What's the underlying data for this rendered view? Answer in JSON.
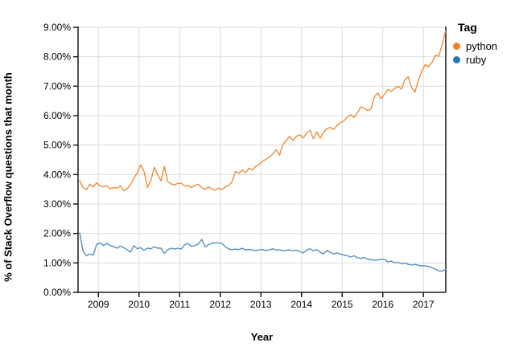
{
  "figure": {
    "y_axis_title": "% of Stack Overflow questions that month",
    "x_axis_title": "Year"
  },
  "legend": {
    "title": "Tag",
    "items": [
      {
        "label": "python",
        "color": "#f28022"
      },
      {
        "label": "ruby",
        "color": "#2878b8"
      }
    ]
  },
  "colors": {
    "background": "#ffffff",
    "grid": "#dcdcdc",
    "axis": "#1a1a1a",
    "text": "#000000",
    "python_line": "#f28c39",
    "ruby_line": "#5590c8"
  },
  "chart_data": {
    "type": "line",
    "title": "",
    "xlabel": "Year",
    "ylabel": "% of Stack Overflow questions that month",
    "grid": true,
    "legend_position": "top-right",
    "legend_title": "Tag",
    "x_unit": "month",
    "x_start": "2008-07",
    "x_end": "2017-07",
    "start_year": 2008,
    "start_month": 7,
    "xlim": [
      2008.5,
      2017.55
    ],
    "ylim": [
      0,
      9
    ],
    "x_ticks": [
      2009,
      2010,
      2011,
      2012,
      2013,
      2014,
      2015,
      2016,
      2017
    ],
    "x_tick_labels": [
      "2009",
      "2010",
      "2011",
      "2012",
      "2013",
      "2014",
      "2015",
      "2016",
      "2017"
    ],
    "y_ticks": [
      0,
      1,
      2,
      3,
      4,
      5,
      6,
      7,
      8,
      9
    ],
    "y_tick_labels": [
      "0.00%",
      "1.00%",
      "2.00%",
      "3.00%",
      "4.00%",
      "5.00%",
      "6.00%",
      "7.00%",
      "8.00%",
      "9.00%"
    ],
    "series": [
      {
        "name": "python",
        "color": "#f28c39",
        "values": [
          3.79,
          3.56,
          3.49,
          3.67,
          3.58,
          3.72,
          3.62,
          3.58,
          3.62,
          3.52,
          3.56,
          3.54,
          3.62,
          3.45,
          3.52,
          3.65,
          3.88,
          4.06,
          4.33,
          4.1,
          3.56,
          3.8,
          4.25,
          4.0,
          3.79,
          4.28,
          3.76,
          3.68,
          3.65,
          3.7,
          3.7,
          3.61,
          3.63,
          3.56,
          3.63,
          3.67,
          3.56,
          3.49,
          3.58,
          3.51,
          3.47,
          3.54,
          3.49,
          3.58,
          3.63,
          3.76,
          4.11,
          4.04,
          4.16,
          4.06,
          4.22,
          4.16,
          4.28,
          4.35,
          4.45,
          4.52,
          4.6,
          4.7,
          4.84,
          4.66,
          5.02,
          5.16,
          5.3,
          5.16,
          5.3,
          5.35,
          5.24,
          5.4,
          5.5,
          5.21,
          5.45,
          5.23,
          5.44,
          5.56,
          5.6,
          5.53,
          5.67,
          5.76,
          5.82,
          5.95,
          6.03,
          5.94,
          6.1,
          6.3,
          6.26,
          6.17,
          6.22,
          6.63,
          6.77,
          6.58,
          6.72,
          6.89,
          6.83,
          6.92,
          7.0,
          6.9,
          7.22,
          7.32,
          6.95,
          6.8,
          7.2,
          7.5,
          7.73,
          7.66,
          7.8,
          8.05,
          8.02,
          8.4,
          8.87
        ]
      },
      {
        "name": "ruby",
        "color": "#5590c8",
        "values": [
          2.02,
          1.39,
          1.24,
          1.3,
          1.27,
          1.63,
          1.68,
          1.59,
          1.66,
          1.59,
          1.55,
          1.5,
          1.57,
          1.52,
          1.45,
          1.36,
          1.59,
          1.48,
          1.52,
          1.43,
          1.5,
          1.48,
          1.55,
          1.5,
          1.5,
          1.32,
          1.45,
          1.5,
          1.47,
          1.5,
          1.47,
          1.62,
          1.66,
          1.56,
          1.59,
          1.64,
          1.8,
          1.55,
          1.62,
          1.66,
          1.68,
          1.68,
          1.66,
          1.55,
          1.47,
          1.45,
          1.47,
          1.45,
          1.5,
          1.44,
          1.46,
          1.44,
          1.42,
          1.44,
          1.45,
          1.42,
          1.44,
          1.48,
          1.43,
          1.45,
          1.41,
          1.43,
          1.44,
          1.41,
          1.44,
          1.38,
          1.34,
          1.43,
          1.48,
          1.41,
          1.45,
          1.36,
          1.3,
          1.43,
          1.36,
          1.3,
          1.34,
          1.3,
          1.27,
          1.24,
          1.2,
          1.24,
          1.18,
          1.15,
          1.18,
          1.13,
          1.11,
          1.09,
          1.1,
          1.12,
          1.12,
          1.04,
          1.06,
          1.0,
          1.02,
          0.97,
          1.0,
          0.95,
          0.93,
          0.95,
          0.92,
          0.9,
          0.9,
          0.88,
          0.84,
          0.79,
          0.73,
          0.72,
          0.78
        ]
      }
    ]
  }
}
